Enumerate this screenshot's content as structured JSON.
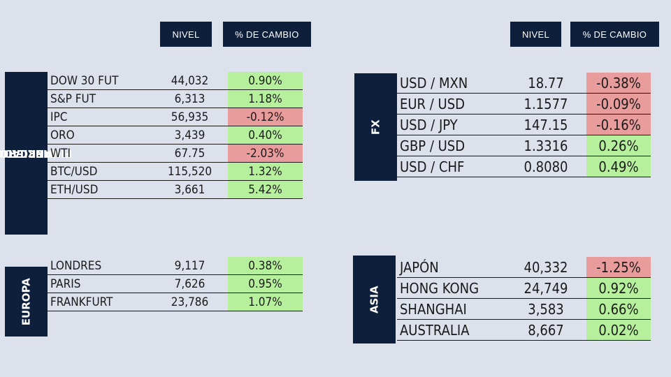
{
  "headers": {
    "left": {
      "nivel": "NIVEL",
      "cambio": "% DE CAMBIO"
    },
    "right": {
      "nivel": "NIVEL",
      "cambio": "% DE CAMBIO"
    }
  },
  "colors": {
    "navy": "#0e1f3b",
    "positive": "#b7f09c",
    "negative": "#e99c9c",
    "background": "#dde1ec"
  },
  "mercados": {
    "label_line1": "MERCADOS",
    "label_line2": "FINANCIEROS",
    "rows": [
      {
        "name": "DOW 30 FUT",
        "level": "44,032",
        "change": "0.90%",
        "trend": "up"
      },
      {
        "name": "S&P FUT",
        "level": "6,313",
        "change": "1.18%",
        "trend": "up"
      },
      {
        "name": "IPC",
        "level": "56,935",
        "change": "-0.12%",
        "trend": "down"
      },
      {
        "name": "ORO",
        "level": "3,439",
        "change": "0.40%",
        "trend": "up"
      },
      {
        "name": "WTI",
        "level": "67.75",
        "change": "-2.03%",
        "trend": "down"
      },
      {
        "name": "BTC/USD",
        "level": "115,520",
        "change": "1.32%",
        "trend": "up"
      },
      {
        "name": "ETH/USD",
        "level": "3,661",
        "change": "5.42%",
        "trend": "up"
      }
    ]
  },
  "europa": {
    "label": "EUROPA",
    "rows": [
      {
        "name": "LONDRES",
        "level": "9,117",
        "change": "0.38%",
        "trend": "up"
      },
      {
        "name": "PARIS",
        "level": "7,626",
        "change": "0.95%",
        "trend": "up"
      },
      {
        "name": "FRANKFURT",
        "level": "23,786",
        "change": "1.07%",
        "trend": "up"
      }
    ]
  },
  "fx": {
    "label": "FX",
    "rows": [
      {
        "name": "USD / MXN",
        "level": "18.77",
        "change": "-0.38%",
        "trend": "down"
      },
      {
        "name": "EUR / USD",
        "level": "1.1577",
        "change": "-0.09%",
        "trend": "down"
      },
      {
        "name": "USD / JPY",
        "level": "147.15",
        "change": "-0.16%",
        "trend": "down"
      },
      {
        "name": "GBP / USD",
        "level": "1.3316",
        "change": "0.26%",
        "trend": "up"
      },
      {
        "name": "USD / CHF",
        "level": "0.8080",
        "change": "0.49%",
        "trend": "up"
      }
    ]
  },
  "asia": {
    "label": "ASIA",
    "rows": [
      {
        "name": "JAPÓN",
        "level": "40,332",
        "change": "-1.25%",
        "trend": "down"
      },
      {
        "name": "HONG KONG",
        "level": "24,749",
        "change": "0.92%",
        "trend": "up"
      },
      {
        "name": "SHANGHAI",
        "level": "3,583",
        "change": "0.66%",
        "trend": "up"
      },
      {
        "name": "AUSTRALIA",
        "level": "8,667",
        "change": "0.02%",
        "trend": "up"
      }
    ]
  }
}
